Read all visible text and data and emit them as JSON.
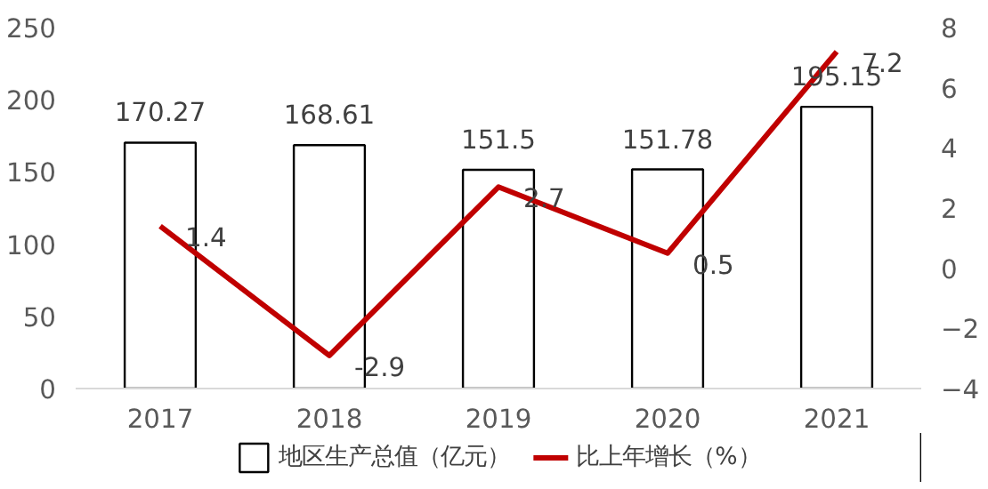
{
  "chart_data": {
    "type": "bar",
    "categories": [
      "2017",
      "2018",
      "2019",
      "2020",
      "2021"
    ],
    "series": [
      {
        "name": "地区生产总值（亿元）",
        "color": "#ffffff",
        "values": [
          170.27,
          168.61,
          151.5,
          151.78,
          195.15
        ]
      },
      {
        "name": "比上年增长（%）",
        "type": "line",
        "axis": "y2",
        "color": "#c00000",
        "values": [
          1.4,
          -2.9,
          2.7,
          0.5,
          7.2
        ]
      }
    ],
    "ylim": [
      0,
      250
    ],
    "yticks": [
      0,
      50,
      100,
      150,
      200,
      250
    ],
    "y2lim": [
      -4,
      8
    ],
    "y2ticks": [
      -4,
      -2,
      0,
      2,
      4,
      6,
      8
    ],
    "data_labels": true,
    "legend": "bottom",
    "grid": false
  }
}
